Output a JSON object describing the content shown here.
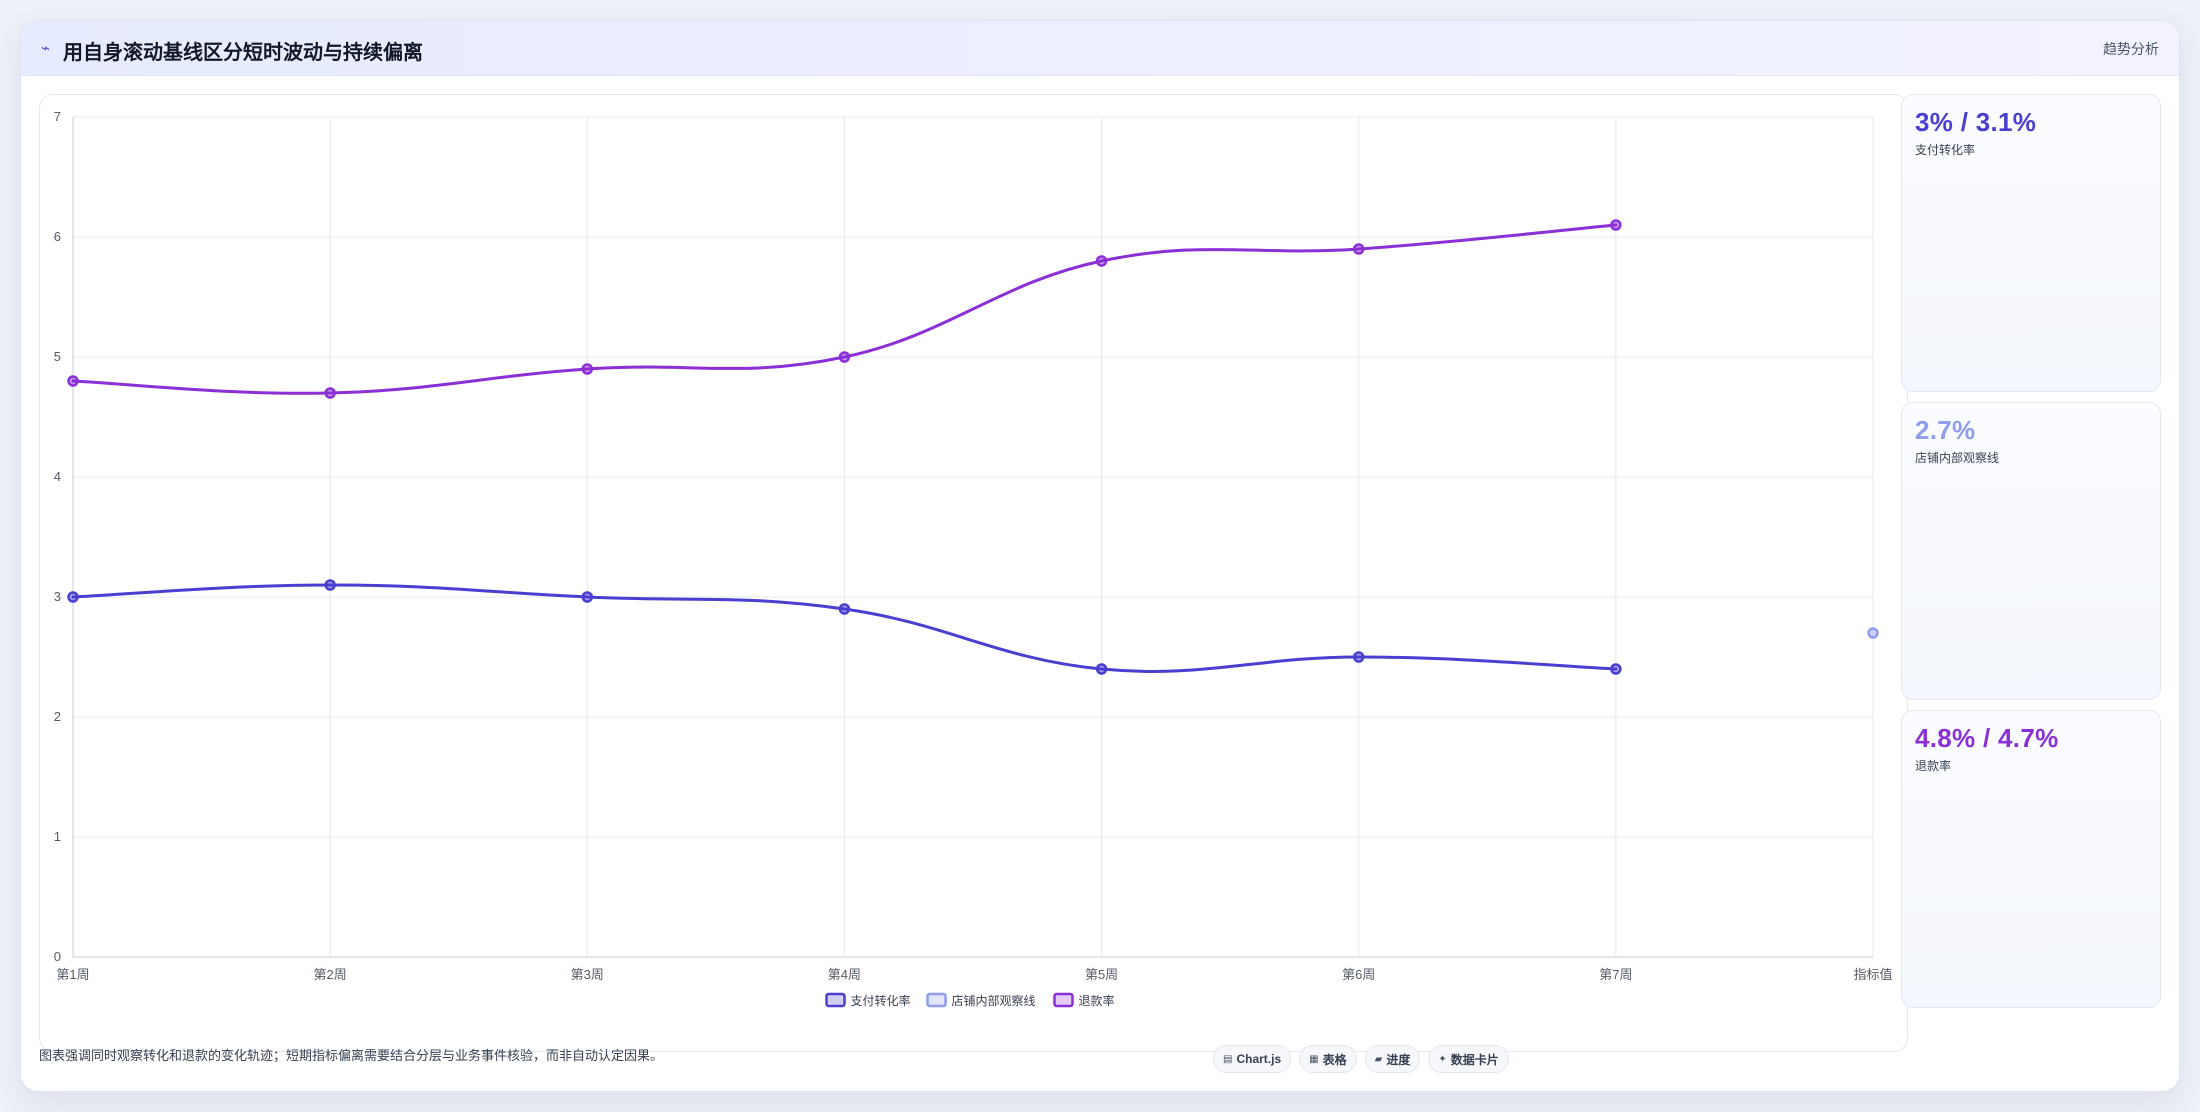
{
  "header": {
    "icon": "trend-line-icon",
    "icon_glyph": "⌁",
    "title": "用自身滚动基线区分短时波动与持续偏离",
    "right_label": "趋势分析"
  },
  "colors": {
    "series1": "#4a3fd1",
    "series2": "#8f9cf0",
    "series3": "#8b2fd6",
    "grid": "#e6e8ef",
    "axis_text": "#555b66"
  },
  "chart_data": {
    "type": "line",
    "categories": [
      "第1周",
      "第2周",
      "第3周",
      "第4周",
      "第5周",
      "第6周",
      "第7周",
      "指标值"
    ],
    "series": [
      {
        "name": "支付转化率",
        "values": [
          3.0,
          3.1,
          3.0,
          2.9,
          2.4,
          2.5,
          2.4,
          null
        ]
      },
      {
        "name": "店铺内部观察线",
        "values": [
          null,
          null,
          null,
          null,
          null,
          null,
          null,
          2.7
        ]
      },
      {
        "name": "退款率",
        "values": [
          4.8,
          4.7,
          4.9,
          5.0,
          5.8,
          5.9,
          6.1,
          null
        ]
      }
    ],
    "y_ticks": [
      "0",
      "1",
      "2",
      "3",
      "4",
      "5",
      "6",
      "7"
    ],
    "ylim": [
      0,
      7
    ],
    "grid": true,
    "legend": "bottom-center"
  },
  "side_cards": [
    {
      "value": "3% / 3.1%",
      "label": "支付转化率",
      "color": "#4a3fd1"
    },
    {
      "value": "2.7%",
      "label": "店铺内部观察线",
      "color": "#8f9cf0"
    },
    {
      "value": "4.8% / 4.7%",
      "label": "退款率",
      "color": "#8b2fd6"
    }
  ],
  "footer": {
    "note": "图表强调同时观察转化和退款的变化轨迹；短期指标偏离需要结合分层与业务事件核验，而非自动认定因果。",
    "chips": [
      {
        "icon": "chart-icon",
        "glyph": "▤",
        "label": "Chart.js"
      },
      {
        "icon": "table-icon",
        "glyph": "▦",
        "label": "表格"
      },
      {
        "icon": "progress-icon",
        "glyph": "▰",
        "label": "进度"
      },
      {
        "icon": "sparkle-icon",
        "glyph": "✦",
        "label": "数据卡片"
      }
    ]
  }
}
